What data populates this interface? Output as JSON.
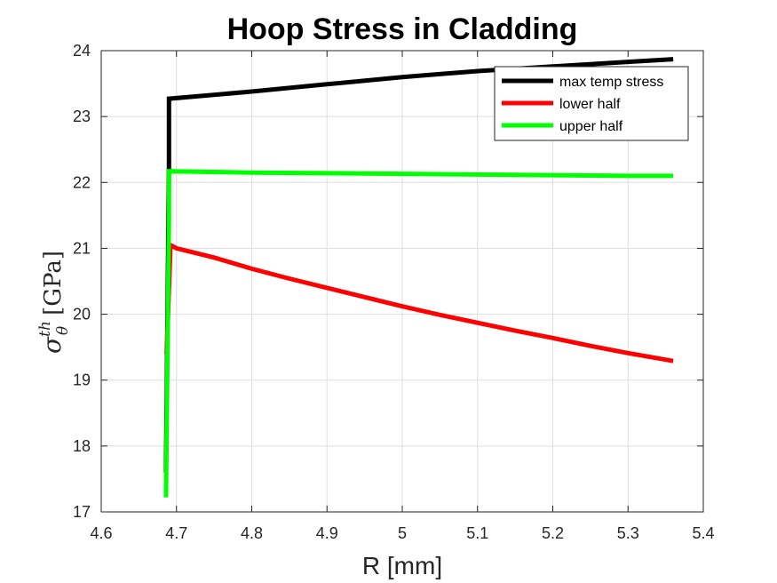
{
  "chart_data": {
    "type": "line",
    "title": "Hoop Stress in Cladding",
    "xlabel": "R [mm]",
    "ylabel": {
      "symbol": "σ",
      "superscript": "th",
      "subscript": "θ",
      "unit": "[GPa]"
    },
    "xlim": [
      4.6,
      5.4
    ],
    "ylim": [
      17,
      24
    ],
    "xticks": [
      "4.6",
      "4.7",
      "4.8",
      "4.9",
      "5",
      "5.1",
      "5.2",
      "5.3",
      "5.4"
    ],
    "yticks": [
      "17",
      "18",
      "19",
      "20",
      "21",
      "22",
      "23",
      "24"
    ],
    "grid": true,
    "legend_position": "top-right",
    "series": [
      {
        "name": "max temp stress",
        "color": "#000000",
        "x": [
          4.686,
          4.69,
          4.69,
          4.8,
          4.9,
          5.0,
          5.1,
          5.2,
          5.3,
          5.36
        ],
        "y": [
          17.6,
          22.3,
          23.27,
          23.38,
          23.49,
          23.6,
          23.69,
          23.76,
          23.83,
          23.87
        ]
      },
      {
        "name": "lower half",
        "color": "#ff0000",
        "x": [
          4.687,
          4.692,
          4.7,
          4.75,
          4.8,
          4.85,
          4.9,
          4.95,
          5.0,
          5.05,
          5.1,
          5.15,
          5.2,
          5.25,
          5.3,
          5.36
        ],
        "y": [
          19.4,
          21.05,
          21.0,
          20.86,
          20.69,
          20.54,
          20.4,
          20.26,
          20.12,
          19.99,
          19.87,
          19.75,
          19.64,
          19.52,
          19.41,
          19.29
        ]
      },
      {
        "name": "upper half",
        "color": "#00ff00",
        "x": [
          4.686,
          4.69,
          4.69,
          4.8,
          4.9,
          5.0,
          5.1,
          5.2,
          5.3,
          5.36
        ],
        "y": [
          17.22,
          21.5,
          22.17,
          22.15,
          22.14,
          22.13,
          22.12,
          22.11,
          22.1,
          22.1
        ]
      }
    ]
  }
}
